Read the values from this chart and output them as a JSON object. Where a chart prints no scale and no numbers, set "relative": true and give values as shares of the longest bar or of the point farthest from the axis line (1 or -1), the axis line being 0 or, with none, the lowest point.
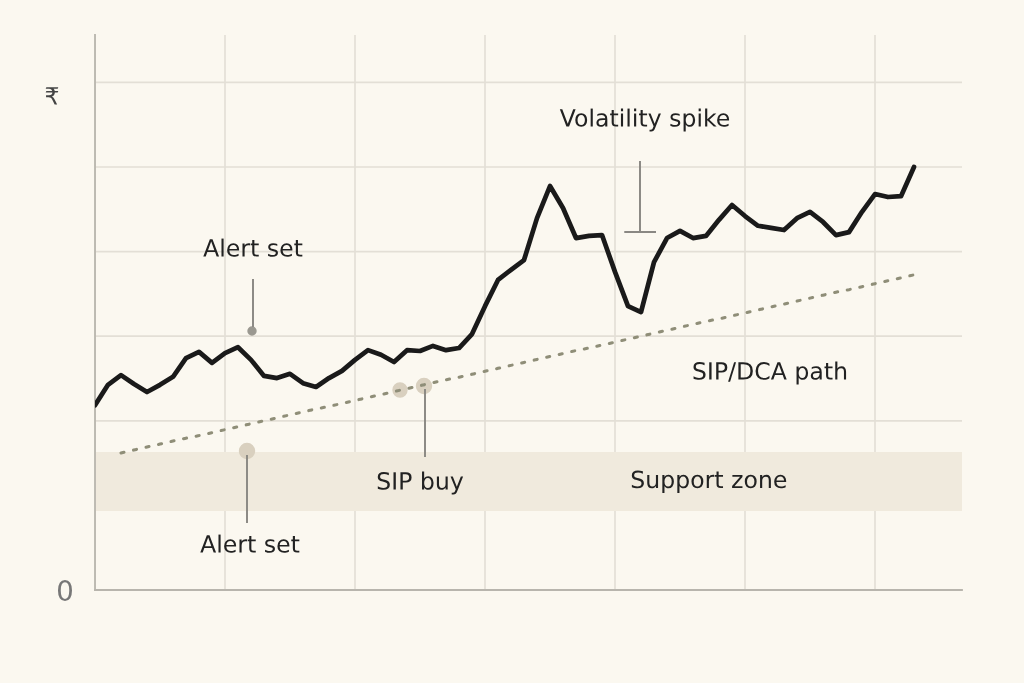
{
  "chart_data": {
    "type": "line",
    "relative": true,
    "ylabel": "₹",
    "categories": [
      null,
      null,
      null,
      null,
      null,
      null,
      null,
      null,
      null,
      null,
      null,
      null,
      null,
      null,
      null,
      null,
      null,
      null,
      null,
      null,
      null,
      null,
      null,
      null,
      null,
      null,
      null,
      null,
      null,
      null,
      null,
      null,
      null,
      null,
      null,
      null,
      null,
      null,
      null,
      null,
      null,
      null,
      null,
      null,
      null,
      null,
      null,
      null,
      null,
      null,
      null,
      null,
      null,
      null,
      null,
      null,
      null,
      null,
      null,
      null,
      null,
      null,
      null,
      null
    ],
    "series": [
      {
        "color": "#1a1a1a",
        "values": [
          0.437,
          0.485,
          0.508,
          0.487,
          0.468,
          0.485,
          0.504,
          0.548,
          0.563,
          0.537,
          0.56,
          0.574,
          0.544,
          0.506,
          0.501,
          0.511,
          0.489,
          0.48,
          0.501,
          0.518,
          0.544,
          0.567,
          0.556,
          0.539,
          0.567,
          0.565,
          0.577,
          0.567,
          0.572,
          0.605,
          0.671,
          0.733,
          0.757,
          0.78,
          0.879,
          0.955,
          0.903,
          0.832,
          0.837,
          0.839,
          0.752,
          0.671,
          0.657,
          0.775,
          0.832,
          0.849,
          0.832,
          0.837,
          0.875,
          0.91,
          0.884,
          0.861,
          0.856,
          0.851,
          0.879,
          0.894,
          0.87,
          0.839,
          0.846,
          0.894,
          0.936,
          0.929,
          0.931,
          1.0
        ]
      },
      {
        "color": "#8f8e78",
        "line_style": "dotted",
        "values": [
          null,
          null,
          0.324,
          0.331,
          0.338,
          0.345,
          0.352,
          0.359,
          0.365,
          0.372,
          0.379,
          0.386,
          0.393,
          0.4,
          0.407,
          0.414,
          0.421,
          0.428,
          0.434,
          0.441,
          0.448,
          0.455,
          0.462,
          0.469,
          0.476,
          0.483,
          0.49,
          0.497,
          0.503,
          0.51,
          0.517,
          0.524,
          0.531,
          0.538,
          0.545,
          0.552,
          0.559,
          0.566,
          0.572,
          0.579,
          0.586,
          0.593,
          0.6,
          0.607,
          0.614,
          0.621,
          0.628,
          0.635,
          0.641,
          0.648,
          0.655,
          0.662,
          0.669,
          0.676,
          0.683,
          0.69,
          0.697,
          0.704,
          0.71,
          0.717,
          0.724,
          0.731,
          0.738,
          0.745
        ]
      }
    ],
    "bands": [
      {
        "axis": "y",
        "from": 0.187,
        "to": 0.326,
        "label": "Support zone",
        "color": "#f0eadd"
      }
    ],
    "annotations": [
      "Volatility spike",
      "Alert set",
      "Alert set",
      "SIP buy",
      "SIP/DCA path",
      "0"
    ],
    "grid": true,
    "tick_labels": false
  }
}
